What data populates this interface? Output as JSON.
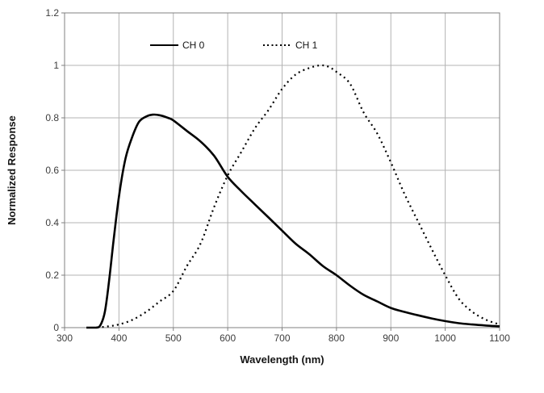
{
  "chart_data": {
    "type": "line",
    "title": "",
    "xlabel": "Wavelength (nm)",
    "ylabel": "Normalized Response",
    "xlim": [
      300,
      1100
    ],
    "ylim": [
      0,
      1.2
    ],
    "x_ticks": [
      300,
      400,
      500,
      600,
      700,
      800,
      900,
      1000,
      1100
    ],
    "x_tick_labels": [
      "300",
      "400",
      "500",
      "600",
      "700",
      "800",
      "900",
      "1000",
      "1100"
    ],
    "y_ticks": [
      0,
      0.2,
      0.4,
      0.6,
      0.8,
      1,
      1.2
    ],
    "y_tick_labels": [
      "0",
      "0.2",
      "0.4",
      "0.6",
      "0.8",
      "1",
      "1.2"
    ],
    "grid": true,
    "legend_position": "top-inside",
    "series": [
      {
        "name": "CH 0",
        "style": "solid",
        "color": "#000000",
        "points": [
          [
            340,
            0
          ],
          [
            358,
            0
          ],
          [
            366,
            0.01
          ],
          [
            374,
            0.06
          ],
          [
            382,
            0.18
          ],
          [
            390,
            0.33
          ],
          [
            400,
            0.5
          ],
          [
            412,
            0.645
          ],
          [
            425,
            0.73
          ],
          [
            437,
            0.785
          ],
          [
            450,
            0.805
          ],
          [
            462,
            0.812
          ],
          [
            475,
            0.81
          ],
          [
            490,
            0.8
          ],
          [
            500,
            0.79
          ],
          [
            525,
            0.75
          ],
          [
            550,
            0.71
          ],
          [
            575,
            0.655
          ],
          [
            600,
            0.575
          ],
          [
            625,
            0.52
          ],
          [
            650,
            0.47
          ],
          [
            675,
            0.42
          ],
          [
            700,
            0.37
          ],
          [
            725,
            0.32
          ],
          [
            750,
            0.28
          ],
          [
            775,
            0.235
          ],
          [
            800,
            0.2
          ],
          [
            825,
            0.16
          ],
          [
            850,
            0.125
          ],
          [
            875,
            0.1
          ],
          [
            900,
            0.075
          ],
          [
            925,
            0.06
          ],
          [
            950,
            0.047
          ],
          [
            975,
            0.035
          ],
          [
            1000,
            0.025
          ],
          [
            1025,
            0.017
          ],
          [
            1050,
            0.012
          ],
          [
            1075,
            0.008
          ],
          [
            1100,
            0.005
          ]
        ]
      },
      {
        "name": "CH 1",
        "style": "dotted",
        "color": "#000000",
        "points": [
          [
            360,
            0
          ],
          [
            380,
            0.005
          ],
          [
            400,
            0.012
          ],
          [
            425,
            0.03
          ],
          [
            450,
            0.06
          ],
          [
            475,
            0.1
          ],
          [
            500,
            0.14
          ],
          [
            525,
            0.235
          ],
          [
            550,
            0.32
          ],
          [
            575,
            0.46
          ],
          [
            600,
            0.58
          ],
          [
            625,
            0.67
          ],
          [
            650,
            0.76
          ],
          [
            675,
            0.83
          ],
          [
            700,
            0.91
          ],
          [
            725,
            0.965
          ],
          [
            750,
            0.99
          ],
          [
            770,
            1.0
          ],
          [
            785,
            0.995
          ],
          [
            800,
            0.975
          ],
          [
            825,
            0.93
          ],
          [
            850,
            0.82
          ],
          [
            875,
            0.74
          ],
          [
            900,
            0.63
          ],
          [
            925,
            0.51
          ],
          [
            950,
            0.405
          ],
          [
            975,
            0.3
          ],
          [
            1000,
            0.2
          ],
          [
            1025,
            0.11
          ],
          [
            1050,
            0.06
          ],
          [
            1075,
            0.03
          ],
          [
            1100,
            0.012
          ]
        ]
      }
    ]
  },
  "colors": {
    "gridline": "#b3b3b3",
    "axis": "#808080",
    "tick_text": "#3d3d3d",
    "title_text": "#141414",
    "series": "#000000",
    "background": "#ffffff"
  }
}
